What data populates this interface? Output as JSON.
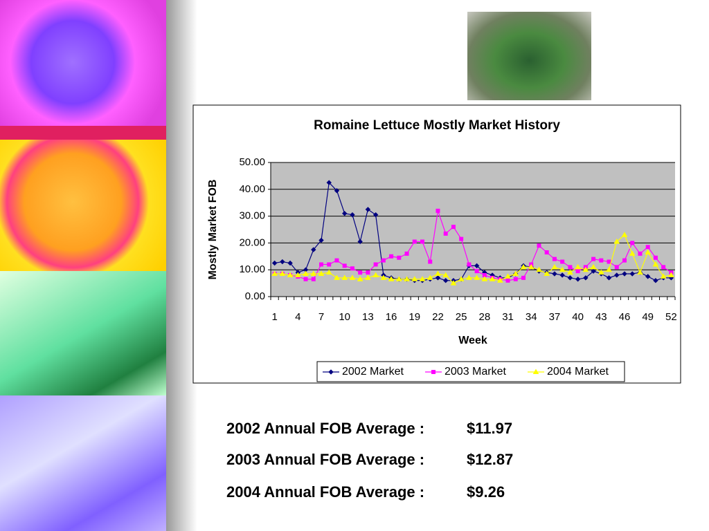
{
  "chart_data": {
    "type": "line",
    "title": "Romaine Lettuce Mostly Market History",
    "y_label": "Mostly Market FOB",
    "x_label": "Week",
    "categories": [
      1,
      null,
      null,
      4,
      null,
      null,
      7,
      null,
      null,
      10,
      null,
      null,
      13,
      null,
      null,
      16,
      null,
      null,
      19,
      null,
      null,
      22,
      null,
      null,
      25,
      null,
      null,
      28,
      null,
      null,
      31,
      null,
      null,
      34,
      null,
      null,
      37,
      null,
      null,
      40,
      null,
      null,
      43,
      null,
      null,
      46,
      null,
      null,
      49,
      null,
      null,
      52
    ],
    "ylim": [
      0,
      50
    ],
    "yticks": [
      {
        "value": 0,
        "label": "0.00"
      },
      {
        "value": 10,
        "label": "10.00"
      },
      {
        "value": 20,
        "label": "20.00"
      },
      {
        "value": 30,
        "label": "30.00"
      },
      {
        "value": 40,
        "label": "40.00"
      },
      {
        "value": 50,
        "label": "50.00"
      }
    ],
    "grid": true,
    "legend": "bottom",
    "series": [
      {
        "name": "2002 Market",
        "color": "#000080",
        "marker": "diamond",
        "values": [
          12.5,
          13,
          12.5,
          9,
          10,
          17.5,
          21,
          42.5,
          39.5,
          31,
          30.5,
          20.5,
          32.5,
          30.5,
          8,
          7,
          6.5,
          6.5,
          6,
          6,
          6.5,
          7,
          6,
          6,
          6.5,
          11.5,
          11.5,
          9,
          8,
          7,
          7,
          8.5,
          11.5,
          11,
          9.5,
          9,
          8.5,
          8,
          7,
          6.5,
          7,
          9.5,
          8.5,
          7,
          8,
          8.5,
          8.5,
          9,
          7.5,
          6,
          7,
          7
        ]
      },
      {
        "name": "2003 Market",
        "color": "#ff00ff",
        "marker": "square",
        "values": [
          8.5,
          8.5,
          8,
          7.5,
          6.5,
          6.5,
          12,
          12,
          13.5,
          11.5,
          10.5,
          9,
          9,
          12,
          13.5,
          15,
          14.5,
          16,
          20.5,
          20.5,
          13,
          32,
          23.5,
          26,
          21.5,
          12,
          9.5,
          8,
          7,
          6.5,
          6,
          6.5,
          7,
          12,
          19,
          16.5,
          14,
          13,
          11,
          9.5,
          11,
          14,
          13.5,
          13,
          11,
          13.5,
          20,
          16,
          18.5,
          14.5,
          11,
          9
        ]
      },
      {
        "name": "2004 Market",
        "color": "#ffff00",
        "marker": "triangle",
        "values": [
          8.5,
          8.5,
          8,
          8,
          8.5,
          8.5,
          8.5,
          9,
          7,
          7,
          7,
          6.5,
          7,
          8,
          7,
          6.5,
          6.5,
          6.5,
          6.5,
          6.5,
          7,
          8.5,
          8,
          5,
          6.5,
          7,
          7,
          6.5,
          6.5,
          6,
          7.5,
          8.5,
          11,
          11,
          10,
          8.5,
          11,
          10,
          9,
          11,
          10,
          11,
          9,
          10,
          20.5,
          23,
          16,
          9,
          16.5,
          12,
          7.5,
          8
        ]
      }
    ]
  },
  "notes": [
    {
      "label": "2002 Annual FOB Average :",
      "value": "$11.97"
    },
    {
      "label": "2003 Annual FOB Average :",
      "value": "$12.87"
    },
    {
      "label": "2004 Annual FOB Average :",
      "value": "$9.26"
    }
  ]
}
